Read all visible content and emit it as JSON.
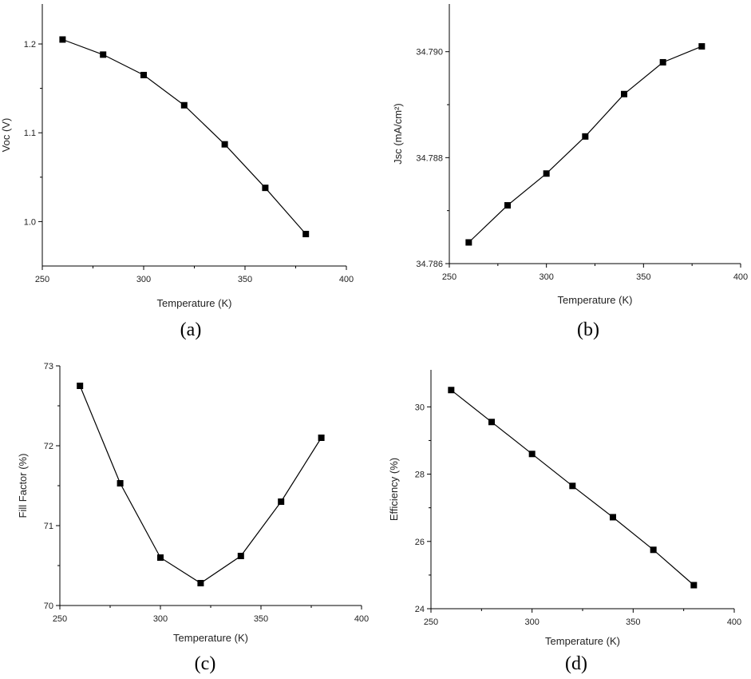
{
  "chart_data": [
    {
      "type": "line",
      "caption": "(a)",
      "xlabel": "Temperature (K)",
      "ylabel": "Voc (V)",
      "xlim": [
        250,
        400
      ],
      "ylim": [
        0.95,
        1.245
      ],
      "xticks": [
        250,
        300,
        350,
        400
      ],
      "yticks": [
        1.0,
        1.1,
        1.2
      ],
      "xtick_labels": [
        "250",
        "300",
        "350",
        "400"
      ],
      "ytick_labels": [
        "1.0",
        "1.1",
        "1.2"
      ],
      "x": [
        260,
        280,
        300,
        320,
        340,
        360,
        380
      ],
      "series": [
        {
          "values": [
            1.205,
            1.188,
            1.165,
            1.131,
            1.087,
            1.038,
            0.986
          ]
        }
      ],
      "grid": false
    },
    {
      "type": "line",
      "caption": "(b)",
      "xlabel": "Temperature (K)",
      "ylabel": "Jsc (mA/cm²)",
      "xlim": [
        250,
        400
      ],
      "ylim": [
        34.786,
        34.7909
      ],
      "xticks": [
        250,
        300,
        350,
        400
      ],
      "yticks": [
        34.786,
        34.788,
        34.79
      ],
      "xtick_labels": [
        "250",
        "300",
        "350",
        "400"
      ],
      "ytick_labels": [
        "34.786",
        "34.788",
        "34.790"
      ],
      "x": [
        260,
        280,
        300,
        320,
        340,
        360,
        380
      ],
      "series": [
        {
          "values": [
            34.7864,
            34.7871,
            34.7877,
            34.7884,
            34.7892,
            34.7898,
            34.7901
          ]
        }
      ],
      "grid": false
    },
    {
      "type": "line",
      "caption": "(c)",
      "xlabel": "Temperature (K)",
      "ylabel": "Fill Factor (%)",
      "xlim": [
        250,
        400
      ],
      "ylim": [
        70,
        73
      ],
      "xticks": [
        250,
        300,
        350,
        400
      ],
      "yticks": [
        70,
        71,
        72,
        73
      ],
      "xtick_labels": [
        "250",
        "300",
        "350",
        "400"
      ],
      "ytick_labels": [
        "70",
        "71",
        "72",
        "73"
      ],
      "x": [
        260,
        280,
        300,
        320,
        340,
        360,
        380
      ],
      "series": [
        {
          "values": [
            72.75,
            71.53,
            70.6,
            70.28,
            70.62,
            71.3,
            72.1
          ]
        }
      ],
      "grid": false
    },
    {
      "type": "line",
      "caption": "(d)",
      "xlabel": "Temperature (K)",
      "ylabel": "Efficiency (%)",
      "xlim": [
        250,
        400
      ],
      "ylim": [
        24,
        31.1
      ],
      "xticks": [
        250,
        300,
        350,
        400
      ],
      "yticks": [
        24,
        26,
        28,
        30
      ],
      "xtick_labels": [
        "250",
        "300",
        "350",
        "400"
      ],
      "ytick_labels": [
        "24",
        "26",
        "28",
        "30"
      ],
      "x": [
        260,
        280,
        300,
        320,
        340,
        360,
        380
      ],
      "series": [
        {
          "values": [
            30.5,
            29.55,
            28.6,
            27.65,
            26.72,
            25.75,
            24.7
          ]
        }
      ],
      "grid": false
    }
  ]
}
